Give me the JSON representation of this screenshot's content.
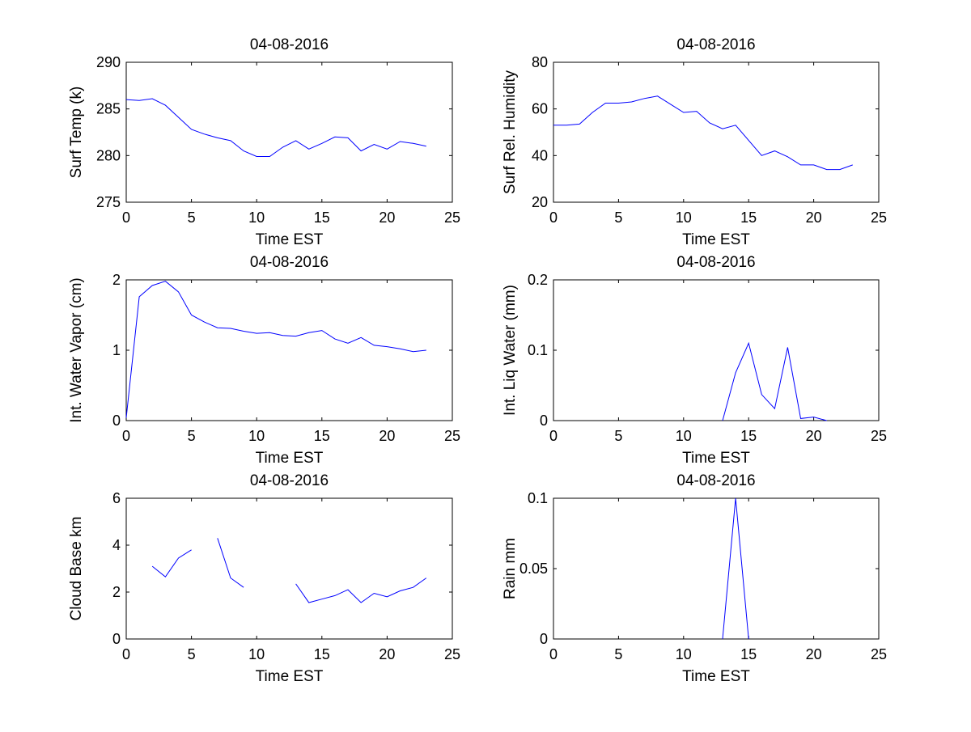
{
  "chart_data": [
    {
      "type": "line",
      "title": "04-08-2016",
      "xlabel": "Time EST",
      "ylabel": "Surf Temp (k)",
      "xlim": [
        0,
        25
      ],
      "ylim": [
        275,
        290
      ],
      "xticks": [
        0,
        5,
        10,
        15,
        20,
        25
      ],
      "yticks": [
        275,
        280,
        285,
        290
      ],
      "grid": false,
      "color": "#0000ff",
      "series": [
        {
          "x": [
            0,
            1,
            2,
            3,
            4,
            5,
            6,
            7,
            8,
            9,
            10,
            11,
            12,
            13,
            14,
            15,
            16,
            17,
            18,
            19,
            20,
            21,
            22,
            23
          ],
          "y": [
            286.0,
            285.9,
            286.1,
            285.4,
            284.1,
            282.8,
            282.3,
            281.9,
            281.6,
            280.5,
            279.9,
            279.9,
            280.9,
            281.6,
            280.7,
            281.3,
            282.0,
            281.9,
            280.5,
            281.2,
            280.7,
            281.5,
            281.3,
            281.0
          ]
        }
      ]
    },
    {
      "type": "line",
      "title": "04-08-2016",
      "xlabel": "Time EST",
      "ylabel": "Surf Rel. Humidity",
      "xlim": [
        0,
        25
      ],
      "ylim": [
        20,
        80
      ],
      "xticks": [
        0,
        5,
        10,
        15,
        20,
        25
      ],
      "yticks": [
        20,
        40,
        60,
        80
      ],
      "grid": false,
      "color": "#0000ff",
      "series": [
        {
          "x": [
            0,
            1,
            2,
            3,
            4,
            5,
            6,
            7,
            8,
            9,
            10,
            11,
            12,
            13,
            14,
            15,
            16,
            17,
            18,
            19,
            20,
            21,
            22,
            23
          ],
          "y": [
            53,
            53,
            53.5,
            58.5,
            62.5,
            62.5,
            63,
            64.5,
            65.5,
            62,
            58.5,
            59,
            54,
            51.5,
            53,
            46.5,
            40,
            42,
            39.5,
            36,
            36,
            34,
            34,
            36
          ]
        }
      ]
    },
    {
      "type": "line",
      "title": "04-08-2016",
      "xlabel": "Time EST",
      "ylabel": "Int. Water Vapor (cm)",
      "xlim": [
        0,
        25
      ],
      "ylim": [
        0,
        2
      ],
      "xticks": [
        0,
        5,
        10,
        15,
        20,
        25
      ],
      "yticks": [
        0,
        1,
        2
      ],
      "grid": false,
      "color": "#0000ff",
      "series": [
        {
          "x": [
            0,
            1,
            2,
            3,
            4,
            5,
            6,
            7,
            8,
            9,
            10,
            11,
            12,
            13,
            14,
            15,
            16,
            17,
            18,
            19,
            20,
            21,
            22,
            23
          ],
          "y": [
            0.04,
            1.76,
            1.92,
            1.98,
            1.83,
            1.5,
            1.4,
            1.32,
            1.31,
            1.27,
            1.24,
            1.25,
            1.21,
            1.2,
            1.25,
            1.28,
            1.16,
            1.1,
            1.18,
            1.07,
            1.05,
            1.02,
            0.98,
            1.0
          ]
        }
      ]
    },
    {
      "type": "line",
      "title": "04-08-2016",
      "xlabel": "Time EST",
      "ylabel": "Int. Liq Water (mm)",
      "xlim": [
        0,
        25
      ],
      "ylim": [
        0,
        0.2
      ],
      "xticks": [
        0,
        5,
        10,
        15,
        20,
        25
      ],
      "yticks": [
        0,
        0.1,
        0.2
      ],
      "grid": false,
      "color": "#0000ff",
      "series": [
        {
          "x": [
            13,
            14,
            15,
            16,
            17,
            18,
            19,
            20,
            21
          ],
          "y": [
            0,
            0.068,
            0.11,
            0.037,
            0.017,
            0.104,
            0.003,
            0.005,
            0
          ]
        }
      ]
    },
    {
      "type": "line",
      "title": "04-08-2016",
      "xlabel": "Time EST",
      "ylabel": "Cloud Base km",
      "xlim": [
        0,
        25
      ],
      "ylim": [
        0,
        6
      ],
      "xticks": [
        0,
        5,
        10,
        15,
        20,
        25
      ],
      "yticks": [
        0,
        2,
        4,
        6
      ],
      "grid": false,
      "color": "#0000ff",
      "series": [
        {
          "x": [
            2,
            3,
            4,
            5
          ],
          "y": [
            3.1,
            2.65,
            3.45,
            3.8
          ]
        },
        {
          "x": [
            7,
            8,
            9
          ],
          "y": [
            4.3,
            2.6,
            2.2
          ]
        },
        {
          "x": [
            13,
            14,
            15,
            16,
            17,
            18,
            19,
            20,
            21,
            22,
            23
          ],
          "y": [
            2.35,
            1.55,
            1.7,
            1.85,
            2.1,
            1.55,
            1.95,
            1.8,
            2.05,
            2.2,
            2.6
          ]
        }
      ]
    },
    {
      "type": "line",
      "title": "04-08-2016",
      "xlabel": "Time EST",
      "ylabel": "Rain mm",
      "xlim": [
        0,
        25
      ],
      "ylim": [
        0,
        0.1
      ],
      "xticks": [
        0,
        5,
        10,
        15,
        20,
        25
      ],
      "yticks": [
        0,
        0.05,
        0.1
      ],
      "grid": false,
      "color": "#0000ff",
      "series": [
        {
          "x": [
            13,
            14,
            15
          ],
          "y": [
            0,
            0.1,
            0
          ]
        }
      ]
    }
  ]
}
